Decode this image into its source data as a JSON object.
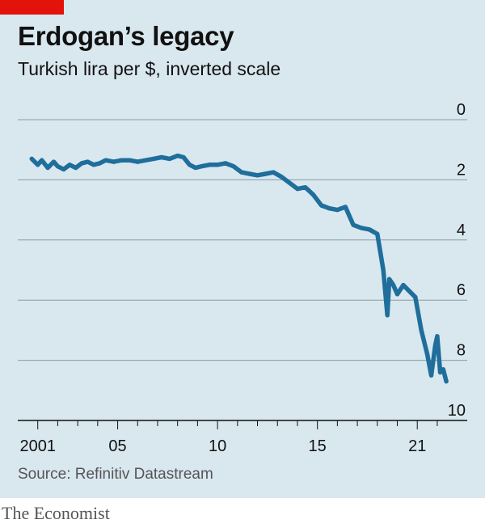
{
  "colors": {
    "background": "#d9e7ef",
    "accent": "#e3120b",
    "series": "#1f6e9b",
    "grid": "#8a9aa3",
    "axis": "#111111"
  },
  "source": "Source: Refinitiv Datastream",
  "brand": "The Economist",
  "chart_data": {
    "type": "line",
    "title": "Erdogan’s legacy",
    "subtitle": "Turkish lira per $, inverted scale",
    "xlabel": "",
    "ylabel": "",
    "y_inverted": true,
    "ylim": [
      0,
      10
    ],
    "xlim": [
      2000.0,
      2022.5
    ],
    "y_ticks": [
      0,
      2,
      4,
      6,
      8,
      10
    ],
    "x_ticks": [
      {
        "value": 2001,
        "label": "2001"
      },
      {
        "value": 2005,
        "label": "05"
      },
      {
        "value": 2010,
        "label": "10"
      },
      {
        "value": 2015,
        "label": "15"
      },
      {
        "value": 2020,
        "label": "21"
      }
    ],
    "grid": true,
    "legend": "none",
    "series": [
      {
        "x": [
          2000.7,
          2001.0,
          2001.2,
          2001.5,
          2001.8,
          2002.0,
          2002.3,
          2002.6,
          2002.9,
          2003.2,
          2003.5,
          2003.8,
          2004.1,
          2004.4,
          2004.8,
          2005.2,
          2005.6,
          2006.0,
          2006.4,
          2006.8,
          2007.2,
          2007.6,
          2008.0,
          2008.3,
          2008.6,
          2008.9,
          2009.2,
          2009.6,
          2010.0,
          2010.4,
          2010.8,
          2011.2,
          2011.6,
          2012.0,
          2012.4,
          2012.8,
          2013.2,
          2013.6,
          2014.0,
          2014.4,
          2014.8,
          2015.2,
          2015.6,
          2016.0,
          2016.4,
          2016.8,
          2017.2,
          2017.6,
          2018.0,
          2018.3,
          2018.5,
          2018.6,
          2018.8,
          2019.0,
          2019.3,
          2019.6,
          2019.9,
          2020.2,
          2020.5,
          2020.7,
          2020.9,
          2021.0,
          2021.15,
          2021.3,
          2021.45
        ],
        "values": [
          1.3,
          1.5,
          1.35,
          1.6,
          1.4,
          1.55,
          1.65,
          1.5,
          1.6,
          1.45,
          1.4,
          1.5,
          1.45,
          1.35,
          1.4,
          1.35,
          1.35,
          1.4,
          1.35,
          1.3,
          1.25,
          1.3,
          1.2,
          1.25,
          1.5,
          1.6,
          1.55,
          1.5,
          1.5,
          1.45,
          1.55,
          1.75,
          1.8,
          1.85,
          1.8,
          1.75,
          1.9,
          2.1,
          2.3,
          2.25,
          2.5,
          2.85,
          2.95,
          3.0,
          2.9,
          3.5,
          3.6,
          3.65,
          3.8,
          5.0,
          6.5,
          5.3,
          5.5,
          5.8,
          5.5,
          5.7,
          5.9,
          7.0,
          7.8,
          8.5,
          7.5,
          7.2,
          8.4,
          8.3,
          8.7
        ]
      }
    ]
  }
}
